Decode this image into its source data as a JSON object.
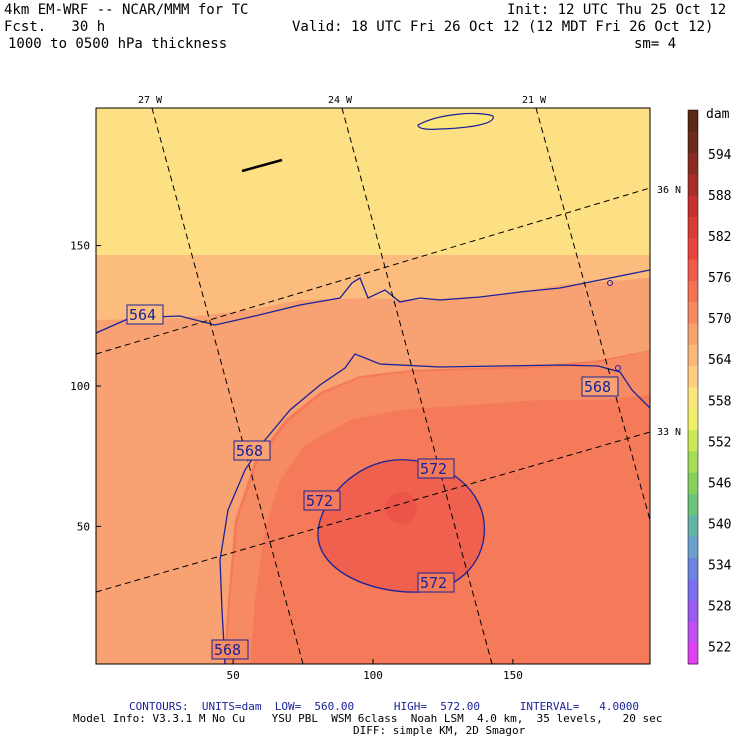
{
  "header": {
    "model": "4km EM-WRF -- NCAR/MMM for TC",
    "init": "Init: 12 UTC Thu 25 Oct 12",
    "fcst": "Fcst.   30 h",
    "valid": "Valid: 18 UTC Fri 26 Oct 12 (12 MDT Fri 26 Oct 12)",
    "field": "1000 to 0500 hPa thickness",
    "sm": "sm= 4"
  },
  "footer": {
    "contours": "CONTOURS:  UNITS=dam  LOW=  560.00      HIGH=  572.00      INTERVAL=   4.0000",
    "model_info": "Model Info: V3.3.1 M No Cu    YSU PBL  WSM 6class  Noah LSM  4.0 km,  35 levels,   20 sec",
    "diff": "DIFF: simple KM, 2D Smagor"
  },
  "chart_data": {
    "type": "heatmap",
    "field": "1000 to 0500 hPa thickness",
    "units": "dam",
    "x_ticks": [
      50,
      100,
      150
    ],
    "y_ticks": [
      50,
      100,
      150
    ],
    "xlim": [
      1,
      199
    ],
    "ylim": [
      1,
      199
    ],
    "lon_labels": [
      "27 W",
      "24 W",
      "21 W"
    ],
    "lat_labels": [
      "36 N",
      "33 N"
    ],
    "colorbar": {
      "title": "dam",
      "levels": [
        522,
        528,
        534,
        540,
        546,
        552,
        558,
        564,
        570,
        576,
        582,
        588,
        594
      ],
      "colors": [
        "#e040f0",
        "#c050f0",
        "#9a5cf0",
        "#7c70ee",
        "#6c86dd",
        "#6aa0cc",
        "#64b4a6",
        "#6cc47c",
        "#86d060",
        "#a6dc58",
        "#cce856",
        "#eef06a",
        "#fce57e",
        "#fcd080",
        "#fab87a",
        "#f8a270",
        "#f68a62",
        "#f47256",
        "#f25a4a",
        "#e8443e",
        "#d83a36",
        "#c83030",
        "#a82e2a",
        "#8a2c22",
        "#6c2a18",
        "#5a2814"
      ]
    },
    "contours": [
      {
        "value": 564,
        "label": "564"
      },
      {
        "value": 568,
        "label": "568"
      },
      {
        "value": 572,
        "label": "572"
      }
    ],
    "fill_colors": {
      "t558": "#fde084",
      "t564": "#fbbc7e",
      "t568": "#f8a274",
      "t570": "#f68a62",
      "t572": "#f47a5a",
      "t574": "#f0604e",
      "contour_line": "#1a2299"
    }
  }
}
